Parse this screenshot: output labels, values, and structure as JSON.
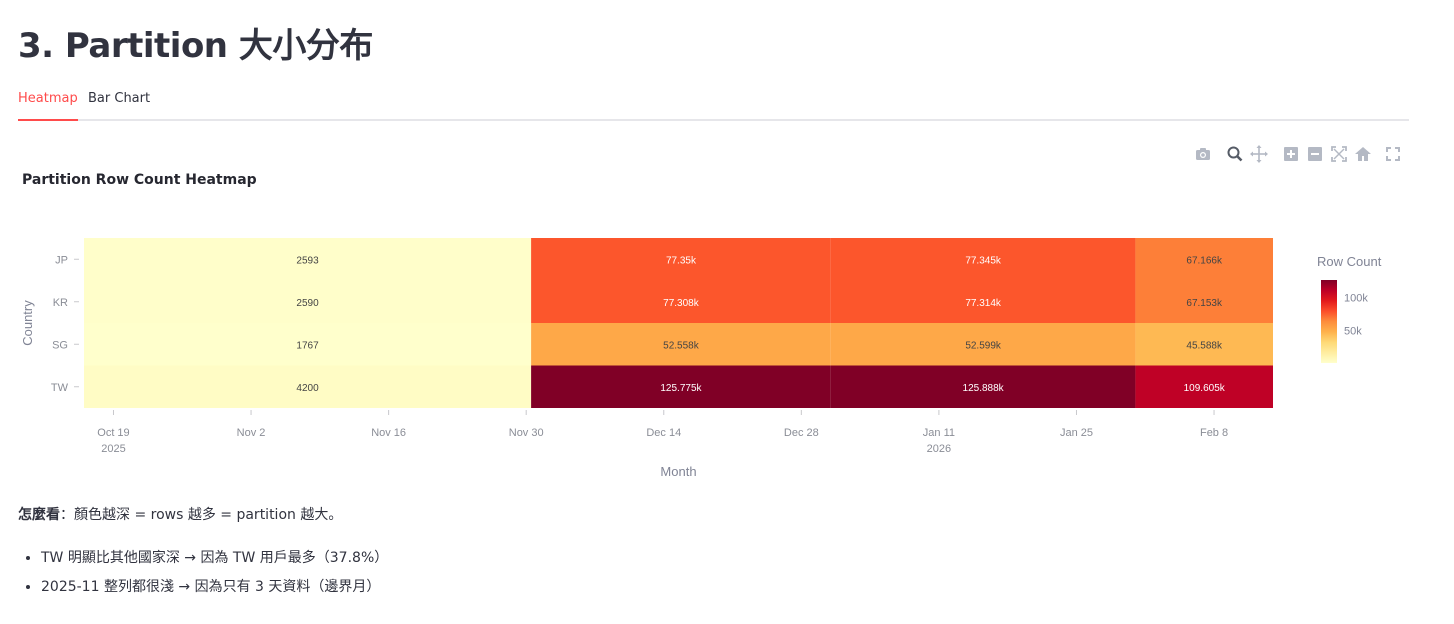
{
  "page": {
    "title": "3. Partition 大小分布"
  },
  "tabs": [
    {
      "label": "Heatmap",
      "active": true
    },
    {
      "label": "Bar Chart",
      "active": false
    }
  ],
  "modebar": [
    "camera-icon",
    "zoom-icon",
    "pan-icon",
    "zoom-in-icon",
    "zoom-out-icon",
    "autoscale-icon",
    "reset-axes-icon",
    "fullscreen-icon"
  ],
  "chart_data": {
    "type": "heatmap",
    "title": "Partition Row Count Heatmap",
    "xlabel": "Month",
    "ylabel": "Country",
    "x_ticks": [
      {
        "label": "Oct 19",
        "sub": "2025",
        "date": "2025-10-19"
      },
      {
        "label": "Nov 2",
        "sub": "",
        "date": "2025-11-02"
      },
      {
        "label": "Nov 16",
        "sub": "",
        "date": "2025-11-16"
      },
      {
        "label": "Nov 30",
        "sub": "",
        "date": "2025-11-30"
      },
      {
        "label": "Dec 14",
        "sub": "",
        "date": "2025-12-14"
      },
      {
        "label": "Dec 28",
        "sub": "",
        "date": "2025-12-28"
      },
      {
        "label": "Jan 11",
        "sub": "2026",
        "date": "2026-01-11"
      },
      {
        "label": "Jan 25",
        "sub": "",
        "date": "2026-01-25"
      },
      {
        "label": "Feb 8",
        "sub": "",
        "date": "2026-02-08"
      }
    ],
    "x_range": [
      "2025-10-16",
      "2026-02-14"
    ],
    "months": [
      "2025-11",
      "2025-12",
      "2026-01",
      "2026-02"
    ],
    "countries": [
      "JP",
      "KR",
      "SG",
      "TW"
    ],
    "values": [
      [
        2593,
        77350,
        77345,
        67166
      ],
      [
        2590,
        77308,
        77314,
        67153
      ],
      [
        1767,
        52558,
        52599,
        45588
      ],
      [
        4200,
        125775,
        125888,
        109605
      ]
    ],
    "labels": [
      [
        "2593",
        "77.35k",
        "77.345k",
        "67.166k"
      ],
      [
        "2590",
        "77.308k",
        "77.314k",
        "67.153k"
      ],
      [
        "1767",
        "52.558k",
        "52.599k",
        "45.588k"
      ],
      [
        "4200",
        "125.775k",
        "125.888k",
        "109.605k"
      ]
    ],
    "colorscale": "YlOrRd",
    "zmin": 1767,
    "zmax": 125888,
    "colorbar": {
      "title": "Row Count",
      "ticks": [
        50000,
        100000
      ],
      "tick_labels": [
        "50k",
        "100k"
      ]
    }
  },
  "explain": {
    "bold": "怎麼看",
    "text": "：顏色越深 = rows 越多 = partition 越大。"
  },
  "notes": [
    "TW 明顯比其他國家深 → 因為 TW 用戶最多（37.8%）",
    "2025-11 整列都很淺 → 因為只有 3 天資料（邊界月）"
  ]
}
